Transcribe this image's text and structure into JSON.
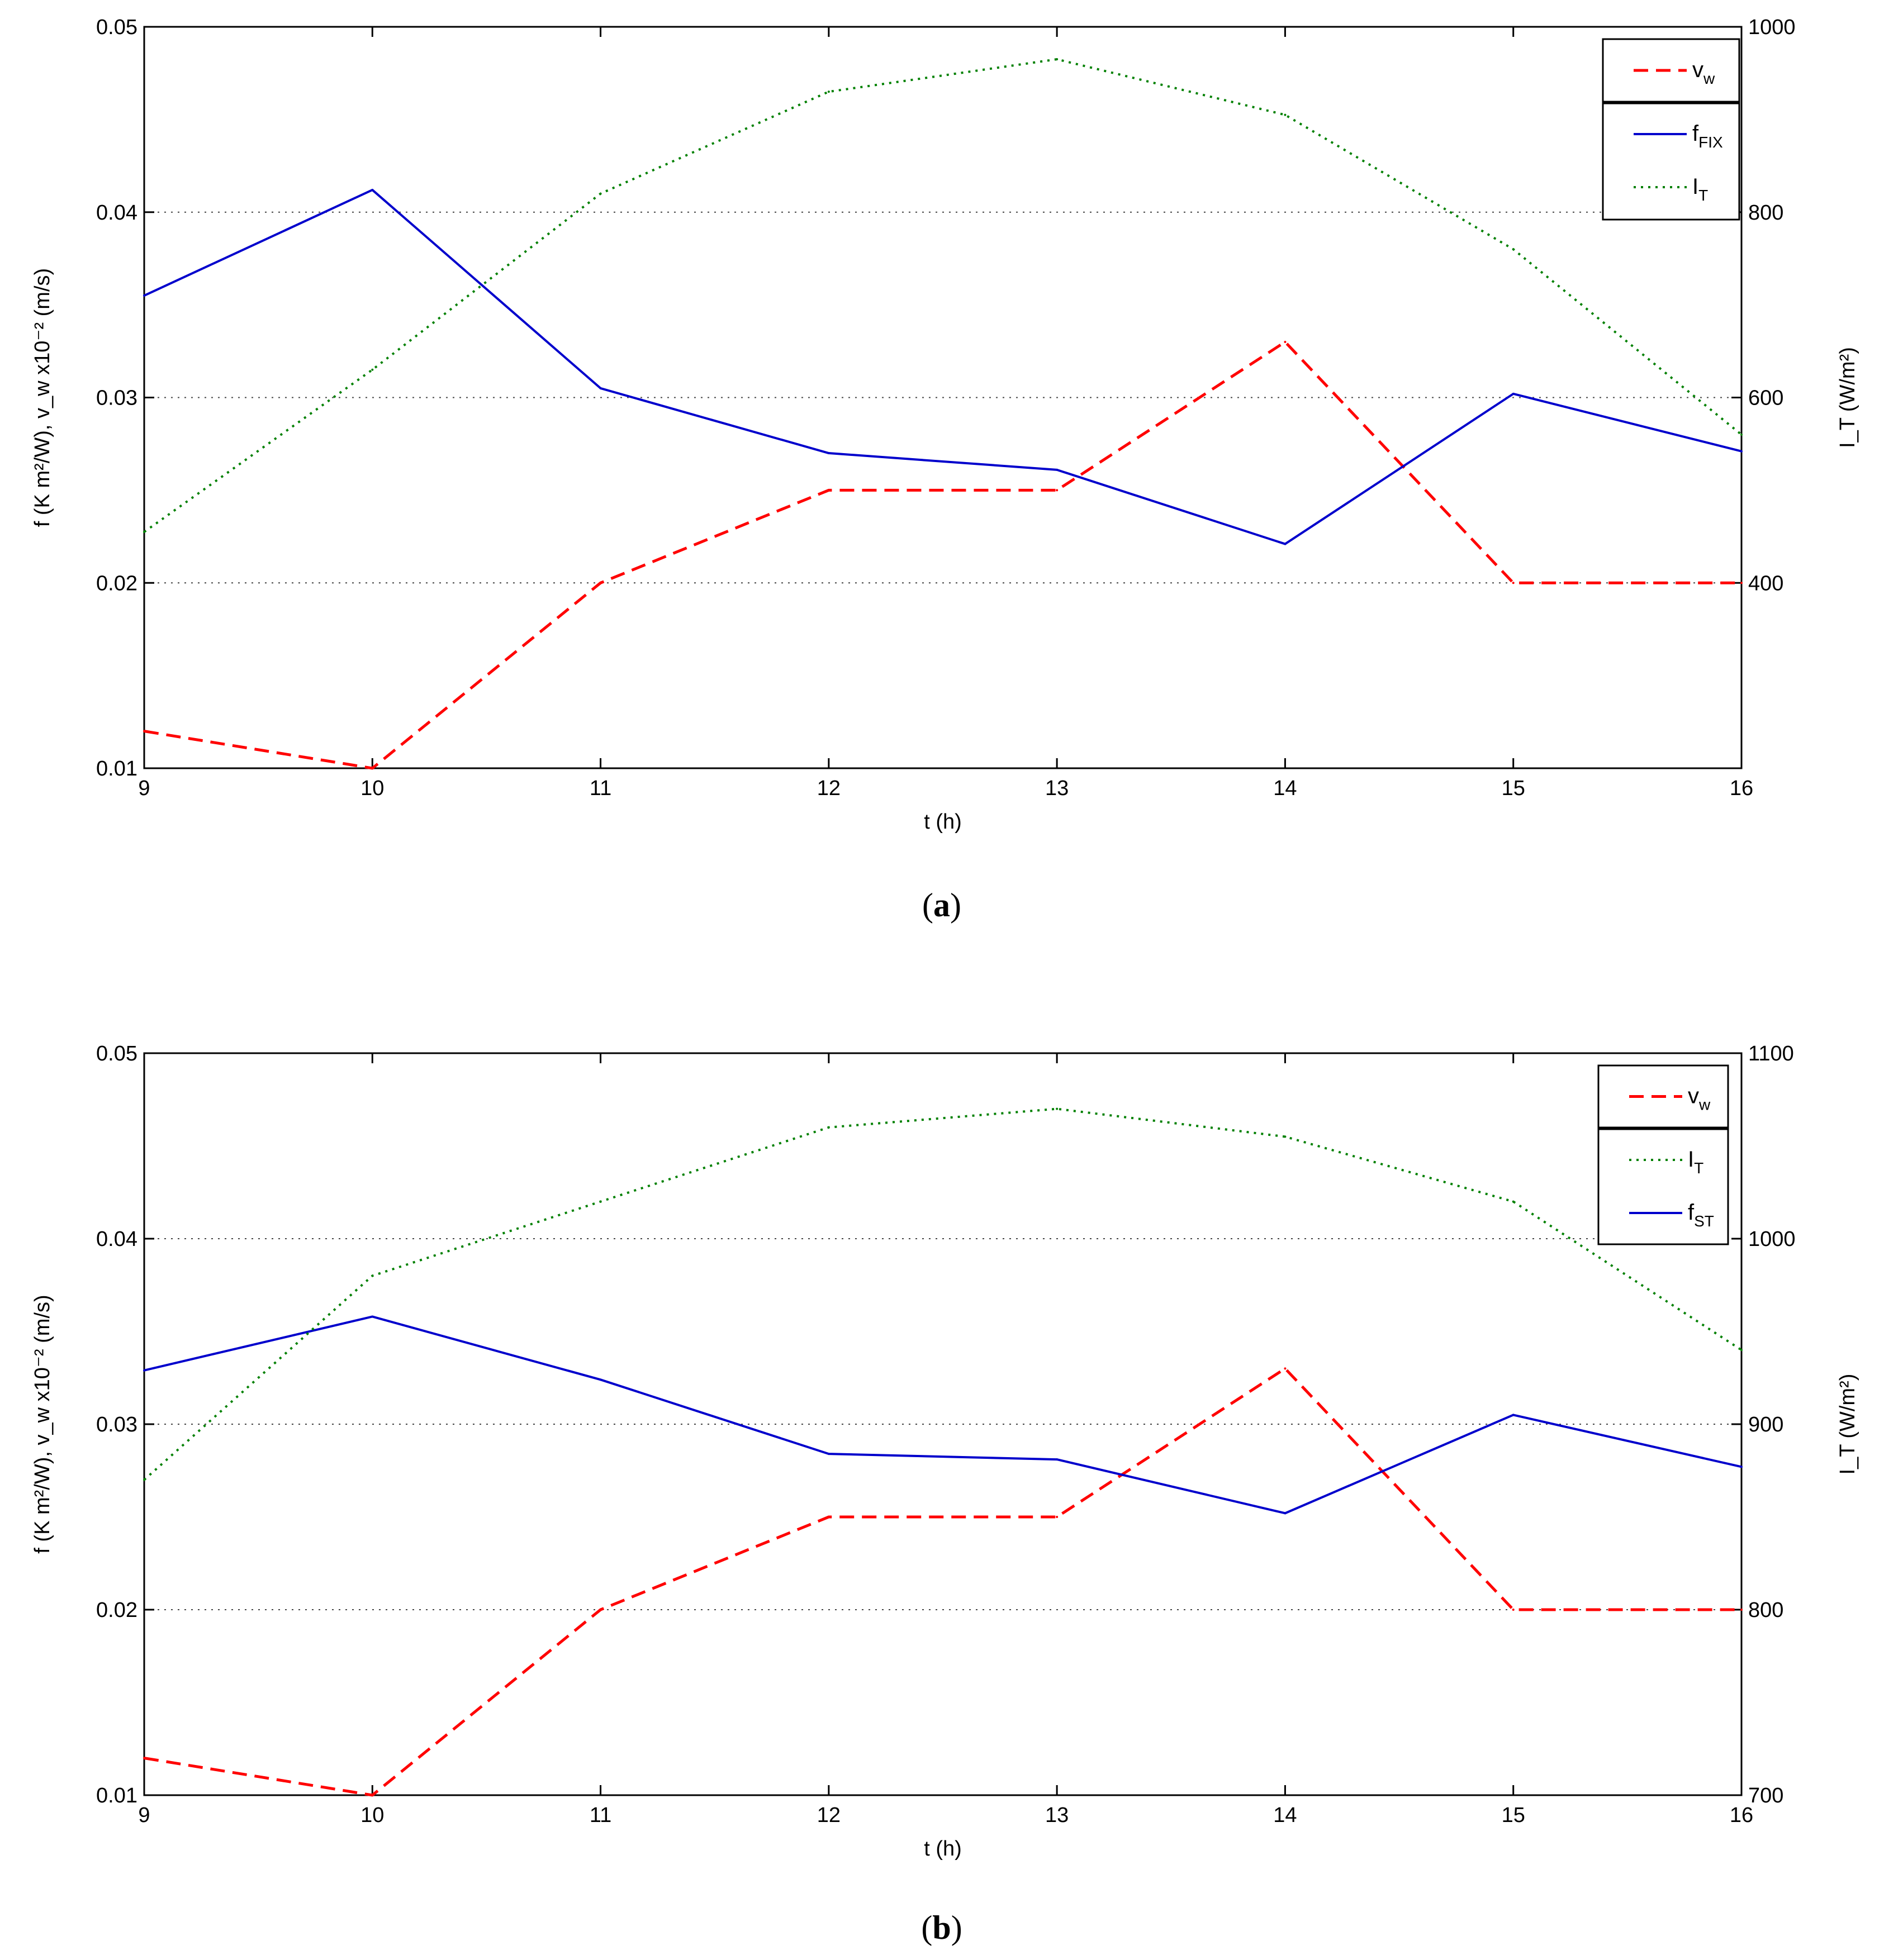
{
  "chart_data": [
    {
      "type": "line",
      "panel": "a",
      "caption_open": "(",
      "caption_letter": "a",
      "caption_close": ")",
      "xlabel": "t (h)",
      "ylabel_left": "f (K m²/W), v_w x10⁻² (m/s)",
      "ylabel_right": "I_T (W/m²)",
      "x": [
        9,
        10,
        11,
        12,
        13,
        14,
        15,
        16
      ],
      "xlim": [
        9,
        16
      ],
      "xticks": [
        9,
        10,
        11,
        12,
        13,
        14,
        15,
        16
      ],
      "ylim_left": [
        0.01,
        0.05
      ],
      "yticks_left": [
        0.01,
        0.02,
        0.03,
        0.04,
        0.05
      ],
      "yticklabels_left": [
        "0.01",
        "0.02",
        "0.03",
        "0.04",
        "0.05"
      ],
      "ylim_right": [
        200,
        1000
      ],
      "yticks_right": [
        400,
        600,
        800,
        1000
      ],
      "yticklabels_right": [
        "400",
        "600",
        "800",
        "1000"
      ],
      "grid": "horizontal dotted at left-axis ticks",
      "legend_position": "top-right",
      "legend_order": [
        "v_w",
        "f_FIX",
        "I_T"
      ],
      "series": [
        {
          "key": "v_w",
          "name": "v_w",
          "label_base": "v",
          "label_sub": "w",
          "axis": "left",
          "style": "dashed",
          "color": "#ff0000",
          "values": [
            0.012,
            0.01,
            0.02,
            0.025,
            0.025,
            0.033,
            0.02,
            0.02
          ]
        },
        {
          "key": "f_FIX",
          "name": "f_FIX",
          "label_base": "f",
          "label_sub": "FIX",
          "axis": "left",
          "style": "solid",
          "color": "#0000cc",
          "values": [
            0.0355,
            0.0412,
            0.0305,
            0.027,
            0.0261,
            0.0221,
            0.0302,
            0.0271
          ]
        },
        {
          "key": "I_T",
          "name": "I_T",
          "label_base": "I",
          "label_sub": "T",
          "axis": "right",
          "style": "dotted",
          "color": "#008000",
          "values": [
            455,
            630,
            820,
            930,
            965,
            905,
            760,
            560
          ]
        }
      ]
    },
    {
      "type": "line",
      "panel": "b",
      "caption_open": "(",
      "caption_letter": "b",
      "caption_close": ")",
      "xlabel": "t (h)",
      "ylabel_left": "f (K m²/W), v_w x10⁻² (m/s)",
      "ylabel_right": "I_T (W/m²)",
      "x": [
        9,
        10,
        11,
        12,
        13,
        14,
        15,
        16
      ],
      "xlim": [
        9,
        16
      ],
      "xticks": [
        9,
        10,
        11,
        12,
        13,
        14,
        15,
        16
      ],
      "ylim_left": [
        0.01,
        0.05
      ],
      "yticks_left": [
        0.01,
        0.02,
        0.03,
        0.04,
        0.05
      ],
      "yticklabels_left": [
        "0.01",
        "0.02",
        "0.03",
        "0.04",
        "0.05"
      ],
      "ylim_right": [
        700,
        1100
      ],
      "yticks_right": [
        700,
        800,
        900,
        1000,
        1100
      ],
      "yticklabels_right": [
        "700",
        "800",
        "900",
        "1000",
        "1100"
      ],
      "grid": "horizontal dotted at left-axis ticks",
      "legend_position": "top-right",
      "legend_order": [
        "v_w",
        "I_T",
        "f_ST"
      ],
      "series": [
        {
          "key": "v_w",
          "name": "v_w",
          "label_base": "v",
          "label_sub": "w",
          "axis": "left",
          "style": "dashed",
          "color": "#ff0000",
          "values": [
            0.012,
            0.01,
            0.02,
            0.025,
            0.025,
            0.033,
            0.02,
            0.02
          ]
        },
        {
          "key": "f_ST",
          "name": "f_ST",
          "label_base": "f",
          "label_sub": "ST",
          "axis": "left",
          "style": "solid",
          "color": "#0000cc",
          "values": [
            0.0329,
            0.0358,
            0.0324,
            0.0284,
            0.0281,
            0.0252,
            0.0305,
            0.0277
          ]
        },
        {
          "key": "I_T",
          "name": "I_T",
          "label_base": "I",
          "label_sub": "T",
          "axis": "right",
          "style": "dotted",
          "color": "#008000",
          "values": [
            870,
            980,
            1020,
            1060,
            1070,
            1055,
            1020,
            940
          ]
        }
      ]
    }
  ]
}
